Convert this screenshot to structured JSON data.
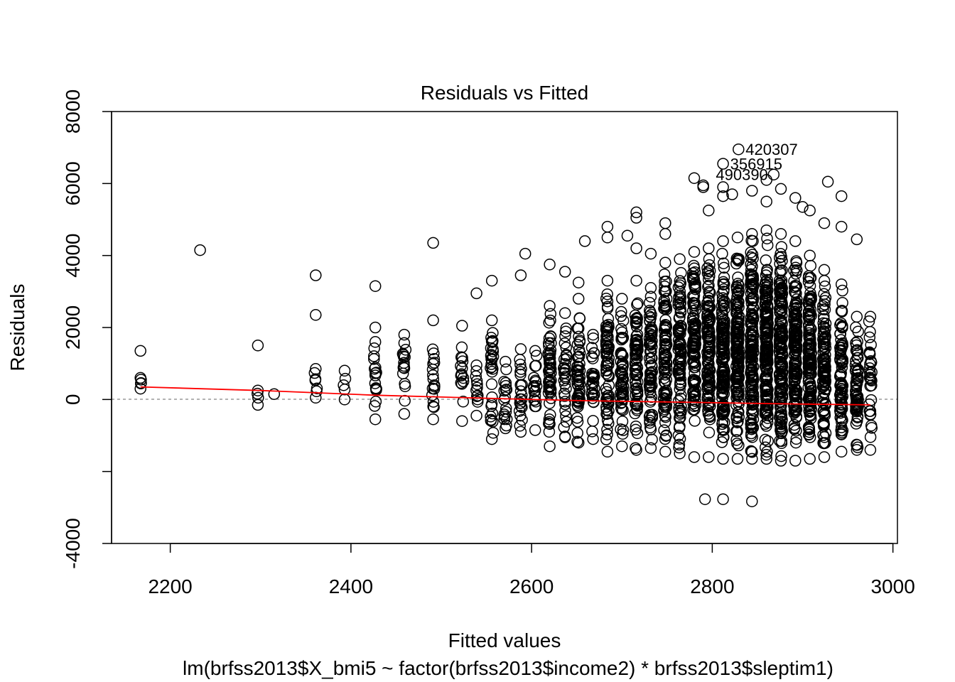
{
  "chart_data": {
    "type": "scatter",
    "title": "Residuals vs Fitted",
    "xlabel": "Fitted values",
    "ylabel": "Residuals",
    "subtitle": "lm(brfss2013$X_bmi5 ~ factor(brfss2013$income2) * brfss2013$sleptim1)",
    "xlim": [
      2135,
      3005
    ],
    "ylim": [
      -4000,
      8000
    ],
    "xticks": [
      2200,
      2400,
      2600,
      2800,
      3000
    ],
    "yticks": [
      -4000,
      0,
      2000,
      4000,
      6000,
      8000
    ],
    "zero_line": 0,
    "colors": {
      "points": "#000000",
      "smoother": "#ff0000",
      "zero_line": "#999999"
    },
    "columns": [
      {
        "x": 2167,
        "ymin": 300,
        "ymax": 600,
        "count": 3
      },
      {
        "x": 2297,
        "ymin": -150,
        "ymax": 250,
        "count": 2
      },
      {
        "x": 2361,
        "ymin": 50,
        "ymax": 850,
        "count": 5
      },
      {
        "x": 2393,
        "ymin": 0,
        "ymax": 800,
        "count": 3
      },
      {
        "x": 2427,
        "ymin": -550,
        "ymax": 2000,
        "count": 14
      },
      {
        "x": 2459,
        "ymin": -400,
        "ymax": 1800,
        "count": 14
      },
      {
        "x": 2491,
        "ymin": -550,
        "ymax": 2200,
        "count": 16
      },
      {
        "x": 2523,
        "ymin": -600,
        "ymax": 2050,
        "count": 14
      },
      {
        "x": 2539,
        "ymin": -450,
        "ymax": 950,
        "count": 10
      },
      {
        "x": 2556,
        "ymin": -1100,
        "ymax": 2200,
        "count": 28
      },
      {
        "x": 2571,
        "ymin": -800,
        "ymax": 1050,
        "count": 16
      },
      {
        "x": 2588,
        "ymin": -900,
        "ymax": 1400,
        "count": 20
      },
      {
        "x": 2604,
        "ymin": -850,
        "ymax": 1350,
        "count": 18
      },
      {
        "x": 2620,
        "ymin": -1300,
        "ymax": 2600,
        "count": 50
      },
      {
        "x": 2637,
        "ymin": -1050,
        "ymax": 2400,
        "count": 30
      },
      {
        "x": 2652,
        "ymin": -1200,
        "ymax": 2800,
        "count": 50
      },
      {
        "x": 2668,
        "ymin": -1100,
        "ymax": 1800,
        "count": 30
      },
      {
        "x": 2684,
        "ymin": -1450,
        "ymax": 3300,
        "count": 70
      },
      {
        "x": 2700,
        "ymin": -1300,
        "ymax": 2800,
        "count": 55
      },
      {
        "x": 2716,
        "ymin": -1400,
        "ymax": 3300,
        "count": 70
      },
      {
        "x": 2732,
        "ymin": -1350,
        "ymax": 3100,
        "count": 70
      },
      {
        "x": 2748,
        "ymin": -1450,
        "ymax": 3800,
        "count": 90
      },
      {
        "x": 2764,
        "ymin": -1500,
        "ymax": 3900,
        "count": 90
      },
      {
        "x": 2780,
        "ymin": -1600,
        "ymax": 4100,
        "count": 110
      },
      {
        "x": 2796,
        "ymin": -1600,
        "ymax": 4200,
        "count": 120
      },
      {
        "x": 2812,
        "ymin": -1650,
        "ymax": 4400,
        "count": 140
      },
      {
        "x": 2828,
        "ymin": -1650,
        "ymax": 4500,
        "count": 150
      },
      {
        "x": 2844,
        "ymin": -1650,
        "ymax": 4600,
        "count": 160
      },
      {
        "x": 2860,
        "ymin": -1650,
        "ymax": 4700,
        "count": 170
      },
      {
        "x": 2876,
        "ymin": -1700,
        "ymax": 4600,
        "count": 170
      },
      {
        "x": 2892,
        "ymin": -1700,
        "ymax": 4400,
        "count": 160
      },
      {
        "x": 2908,
        "ymin": -1650,
        "ymax": 4000,
        "count": 140
      },
      {
        "x": 2924,
        "ymin": -1600,
        "ymax": 3600,
        "count": 110
      },
      {
        "x": 2943,
        "ymin": -1450,
        "ymax": 3200,
        "count": 80
      },
      {
        "x": 2960,
        "ymin": -1400,
        "ymax": 2300,
        "count": 60
      },
      {
        "x": 2975,
        "ymin": -1400,
        "ymax": 2300,
        "count": 30
      }
    ],
    "outliers": [
      [
        2167,
        1350
      ],
      [
        2233,
        4150
      ],
      [
        2297,
        1500
      ],
      [
        2315,
        150
      ],
      [
        2361,
        3450
      ],
      [
        2361,
        2350
      ],
      [
        2427,
        3150
      ],
      [
        2427,
        1600
      ],
      [
        2491,
        4350
      ],
      [
        2539,
        2950
      ],
      [
        2556,
        3300
      ],
      [
        2588,
        3450
      ],
      [
        2593,
        4050
      ],
      [
        2620,
        3750
      ],
      [
        2637,
        3550
      ],
      [
        2652,
        3250
      ],
      [
        2659,
        4400
      ],
      [
        2684,
        4800
      ],
      [
        2684,
        4500
      ],
      [
        2706,
        4550
      ],
      [
        2716,
        5200
      ],
      [
        2716,
        5050
      ],
      [
        2716,
        4200
      ],
      [
        2732,
        4050
      ],
      [
        2748,
        4900
      ],
      [
        2748,
        4600
      ],
      [
        2780,
        6150
      ],
      [
        2790,
        5950
      ],
      [
        2790,
        5900
      ],
      [
        2796,
        5250
      ],
      [
        2812,
        5900
      ],
      [
        2812,
        5650
      ],
      [
        2822,
        5700
      ],
      [
        2844,
        5800
      ],
      [
        2860,
        6100
      ],
      [
        2860,
        5500
      ],
      [
        2876,
        5850
      ],
      [
        2892,
        5600
      ],
      [
        2900,
        5350
      ],
      [
        2908,
        5250
      ],
      [
        2924,
        4900
      ],
      [
        2928,
        6050
      ],
      [
        2943,
        5650
      ],
      [
        2943,
        4800
      ],
      [
        2960,
        4450
      ],
      [
        2792,
        -2770
      ],
      [
        2812,
        -2770
      ],
      [
        2844,
        -2830
      ]
    ],
    "labeled_points": [
      {
        "label": "420307",
        "x": 2829,
        "y": 6950
      },
      {
        "label": "356915",
        "x": 2812,
        "y": 6550
      },
      {
        "label": "490390",
        "x": 2868,
        "y": 6250
      }
    ],
    "smoother": [
      [
        2167,
        350
      ],
      [
        2300,
        250
      ],
      [
        2427,
        120
      ],
      [
        2556,
        30
      ],
      [
        2652,
        -30
      ],
      [
        2780,
        -80
      ],
      [
        2876,
        -120
      ],
      [
        2975,
        -150
      ]
    ]
  }
}
